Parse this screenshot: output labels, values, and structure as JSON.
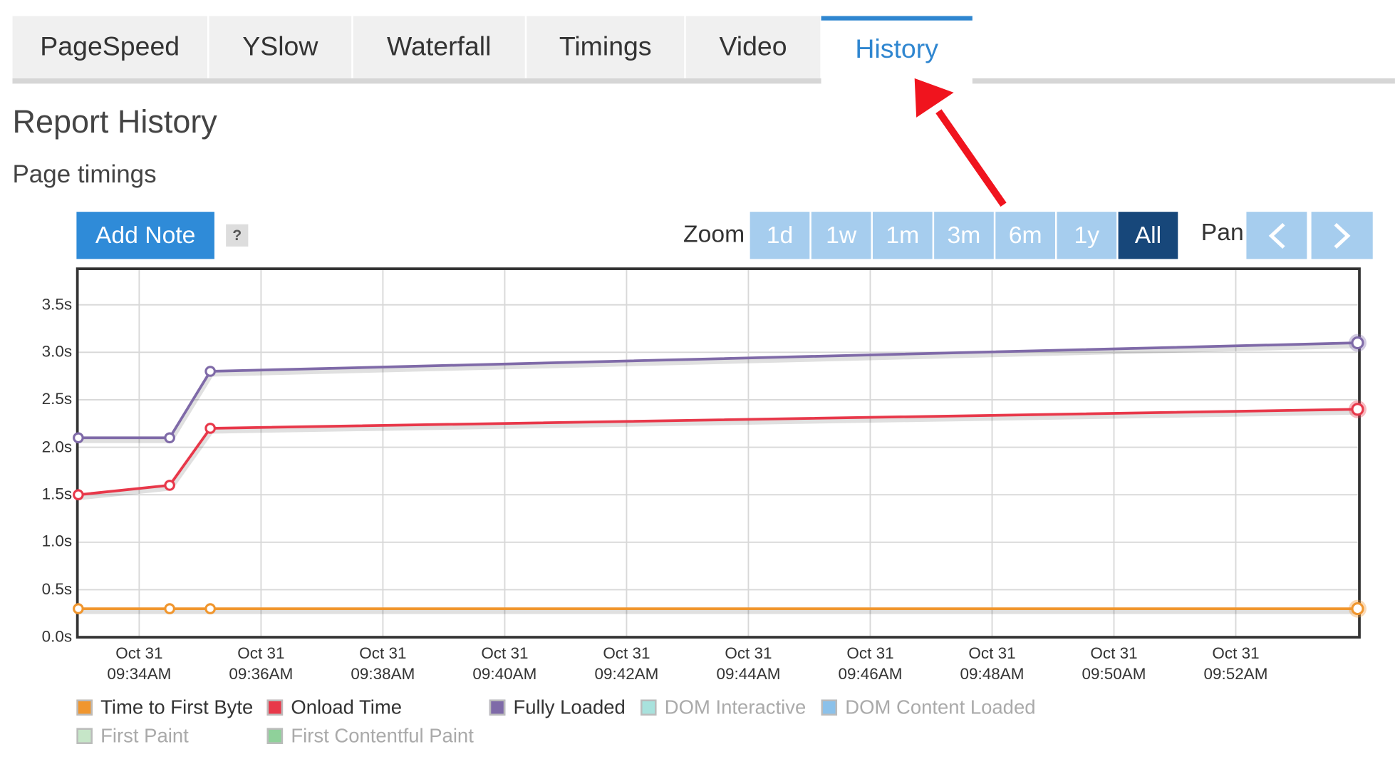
{
  "tabs": [
    "PageSpeed",
    "YSlow",
    "Waterfall",
    "Timings",
    "Video",
    "History"
  ],
  "active_tab": 5,
  "header": {
    "title": "Report History",
    "subtitle": "Page timings"
  },
  "add_note": "Add Note",
  "help": "?",
  "zoom": {
    "label": "Zoom",
    "buttons": [
      "1d",
      "1w",
      "1m",
      "3m",
      "6m",
      "1y",
      "All"
    ],
    "active": 6
  },
  "pan": {
    "label": "Pan"
  },
  "chart_data": {
    "type": "line",
    "x": [
      "09:33:00",
      "09:34:30",
      "09:35:10",
      "09:54:00"
    ],
    "xlim": [
      "09:33:00",
      "09:54:00"
    ],
    "xticks": [
      {
        "value": "09:34",
        "label": "Oct 31\n09:34AM"
      },
      {
        "value": "09:36",
        "label": "Oct 31\n09:36AM"
      },
      {
        "value": "09:38",
        "label": "Oct 31\n09:38AM"
      },
      {
        "value": "09:40",
        "label": "Oct 31\n09:40AM"
      },
      {
        "value": "09:42",
        "label": "Oct 31\n09:42AM"
      },
      {
        "value": "09:44",
        "label": "Oct 31\n09:44AM"
      },
      {
        "value": "09:46",
        "label": "Oct 31\n09:46AM"
      },
      {
        "value": "09:48",
        "label": "Oct 31\n09:48AM"
      },
      {
        "value": "09:50",
        "label": "Oct 31\n09:50AM"
      },
      {
        "value": "09:52",
        "label": "Oct 31\n09:52AM"
      }
    ],
    "ylim": [
      0,
      3.88
    ],
    "yticks": [
      {
        "value": 0,
        "label": "0.0s"
      },
      {
        "value": 0.5,
        "label": "0.5s"
      },
      {
        "value": 1,
        "label": "1.0s"
      },
      {
        "value": 1.5,
        "label": "1.5s"
      },
      {
        "value": 2,
        "label": "2.0s"
      },
      {
        "value": 2.5,
        "label": "2.5s"
      },
      {
        "value": 3,
        "label": "3.0s"
      },
      {
        "value": 3.5,
        "label": "3.5s"
      }
    ],
    "grid": true,
    "series": [
      {
        "name": "Time to First Byte",
        "color": "#f0962e",
        "visible": true,
        "values": [
          0.3,
          0.3,
          0.3,
          0.3
        ]
      },
      {
        "name": "Onload Time",
        "color": "#e8384a",
        "visible": true,
        "values": [
          1.5,
          1.6,
          2.2,
          2.4
        ]
      },
      {
        "name": "Fully Loaded",
        "color": "#7f6aa8",
        "visible": true,
        "values": [
          2.1,
          2.1,
          2.8,
          3.1
        ]
      },
      {
        "name": "DOM Interactive",
        "color": "#a8e2dd",
        "visible": false,
        "values": [
          null,
          null,
          null,
          null
        ]
      },
      {
        "name": "DOM Content Loaded",
        "color": "#8bc1ea",
        "visible": false,
        "values": [
          null,
          null,
          null,
          null
        ]
      },
      {
        "name": "First Paint",
        "color": "#c6e6c8",
        "visible": false,
        "values": [
          null,
          null,
          null,
          null
        ]
      },
      {
        "name": "First Contentful Paint",
        "color": "#8fd19a",
        "visible": false,
        "values": [
          null,
          null,
          null,
          null
        ]
      }
    ]
  }
}
